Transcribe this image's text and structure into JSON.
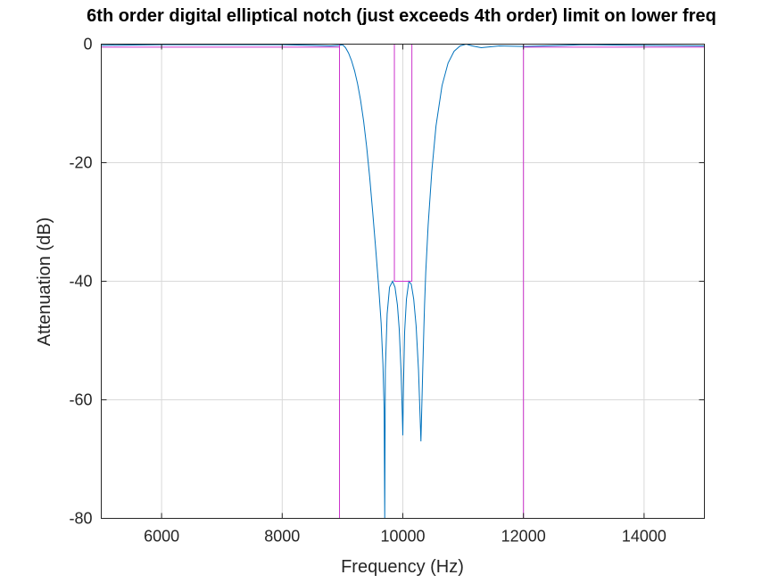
{
  "chart_data": {
    "type": "line",
    "title": "6th order digital elliptical notch (just exceeds 4th order) limit on lower freq",
    "xlabel": "Frequency (Hz)",
    "ylabel": "Attenuation (dB)",
    "xlim": [
      5000,
      15000
    ],
    "ylim": [
      -80,
      0
    ],
    "xticks": [
      6000,
      8000,
      10000,
      12000,
      14000
    ],
    "yticks": [
      0,
      -20,
      -40,
      -60,
      -80
    ],
    "grid": true,
    "series": [
      {
        "color": "#0072bd",
        "x": [
          5000,
          6000,
          7000,
          8000,
          8500,
          8800,
          8950,
          9000,
          9050,
          9100,
          9150,
          9200,
          9250,
          9300,
          9350,
          9400,
          9450,
          9500,
          9550,
          9600,
          9640,
          9670,
          9690,
          9700,
          9710,
          9740,
          9780,
          9830,
          9870,
          9910,
          9940,
          9970,
          9990,
          10000,
          10010,
          10030,
          10060,
          10100,
          10140,
          10180,
          10220,
          10260,
          10300,
          10330,
          10350,
          10360,
          10380,
          10420,
          10480,
          10550,
          10650,
          10750,
          10850,
          10950,
          11050,
          11150,
          11300,
          11600,
          12000,
          13000,
          14000,
          15000
        ],
        "y": [
          -0.2,
          -0.1,
          -0.1,
          -0.1,
          -0.2,
          -0.3,
          -0.2,
          -0.1,
          -0.6,
          -1.5,
          -2.8,
          -4.5,
          -6.7,
          -9.5,
          -13.0,
          -17.3,
          -22.4,
          -28.3,
          -34.5,
          -41.0,
          -47.0,
          -54.0,
          -61.5,
          -80,
          -55.0,
          -45.5,
          -41.0,
          -40.0,
          -41.0,
          -44.0,
          -48.0,
          -55.0,
          -62.0,
          -66.0,
          -58.0,
          -48.5,
          -43.0,
          -40.0,
          -40.5,
          -43.0,
          -47.5,
          -55.0,
          -67.0,
          -55.0,
          -47.5,
          -44.0,
          -38.5,
          -30.5,
          -21.5,
          -13.8,
          -7.0,
          -3.2,
          -1.2,
          -0.3,
          0,
          -0.3,
          -0.6,
          -0.3,
          -0.4,
          -0.1,
          -0.2,
          -0.3
        ]
      },
      {
        "color": "#cc33cc",
        "x": [
          5000,
          8950,
          8950,
          8950,
          12000,
          12000,
          12000,
          15000
        ],
        "y": [
          -0.5,
          -0.5,
          -80,
          0,
          0,
          -80,
          -0.5,
          -0.5
        ]
      },
      {
        "color": "#cc33cc",
        "x": [
          9860,
          9860,
          10150,
          10150
        ],
        "y": [
          0,
          -40,
          -40,
          0
        ]
      }
    ]
  }
}
